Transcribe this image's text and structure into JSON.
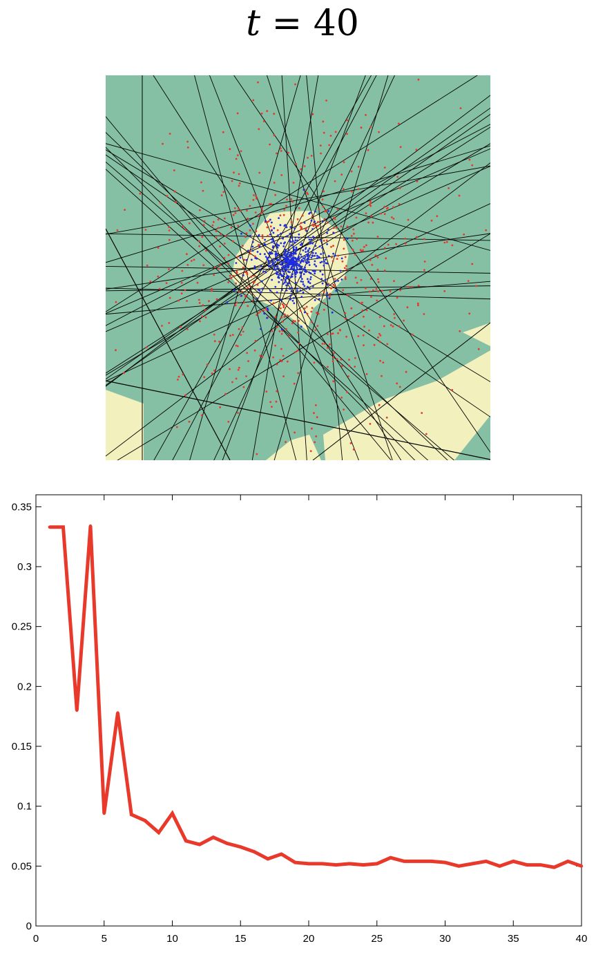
{
  "title": {
    "var": "t",
    "eq": " = ",
    "value": "40"
  },
  "classifier_panel": {
    "colors": {
      "negative_region": "#85bfa4",
      "positive_region": "#f2f0bd",
      "positive_points": "#1f2de0",
      "negative_points": "#e6392b",
      "boundary_lines": "#000000"
    }
  },
  "chart_data": {
    "type": "line",
    "x": [
      1,
      2,
      3,
      4,
      5,
      6,
      7,
      8,
      9,
      10,
      11,
      12,
      13,
      14,
      15,
      16,
      17,
      18,
      19,
      20,
      21,
      22,
      23,
      24,
      25,
      26,
      27,
      28,
      29,
      30,
      31,
      32,
      33,
      34,
      35,
      36,
      37,
      38,
      39,
      40
    ],
    "series": [
      {
        "color": "#e8392b",
        "values": [
          0.333,
          0.333,
          0.18,
          0.334,
          0.094,
          0.178,
          0.093,
          0.088,
          0.078,
          0.094,
          0.071,
          0.068,
          0.074,
          0.069,
          0.066,
          0.062,
          0.056,
          0.06,
          0.053,
          0.052,
          0.052,
          0.051,
          0.052,
          0.051,
          0.052,
          0.057,
          0.054,
          0.054,
          0.054,
          0.053,
          0.05,
          0.052,
          0.054,
          0.05,
          0.054,
          0.051,
          0.051,
          0.049,
          0.054,
          0.05
        ]
      }
    ],
    "xlim": [
      0,
      40
    ],
    "ylim": [
      0,
      0.36
    ],
    "xticks": [
      0,
      5,
      10,
      15,
      20,
      25,
      30,
      35,
      40
    ],
    "xtick_labels": [
      "0",
      "5",
      "10",
      "15",
      "20",
      "25",
      "30",
      "35",
      "40"
    ],
    "yticks": [
      0,
      0.05,
      0.1,
      0.15,
      0.2,
      0.25,
      0.3,
      0.35
    ],
    "ytick_labels": [
      "0",
      "0.05",
      "0.1",
      "0.15",
      "0.2",
      "0.25",
      "0.3",
      "0.35"
    ],
    "title": "",
    "xlabel": "",
    "ylabel": "",
    "grid": false
  }
}
